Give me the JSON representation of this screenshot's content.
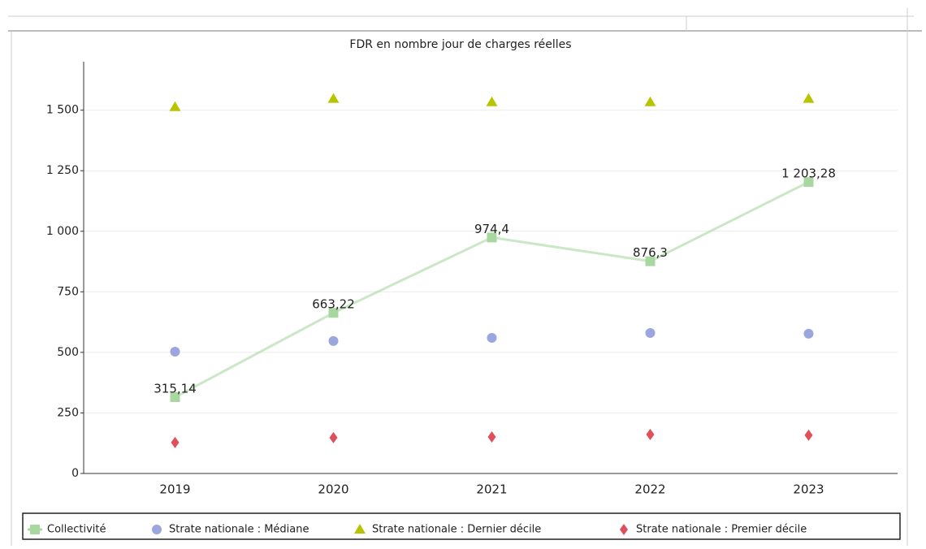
{
  "chart_data": {
    "type": "line",
    "title": "FDR en nombre jour de charges réelles",
    "categories": [
      "2019",
      "2020",
      "2021",
      "2022",
      "2023"
    ],
    "ylim": [
      0,
      1700
    ],
    "yticks": [
      0,
      250,
      500,
      750,
      {
        "value": 1000,
        "label": "1 000"
      },
      {
        "value": 1250,
        "label": "1 250"
      },
      {
        "value": 1500,
        "label": "1 500"
      }
    ],
    "grid": true,
    "legend": "bottom",
    "series": [
      {
        "name": "Collectivité",
        "color": "#a8d8a0",
        "marker": "square",
        "line": true,
        "values": [
          315.14,
          663.22,
          974.4,
          876.3,
          1203.28
        ],
        "value_labels": [
          "315,14",
          "663,22",
          "974,4",
          "876,3",
          "1 203,28"
        ]
      },
      {
        "name": "Strate nationale : Médiane",
        "color": "#9aa6dd",
        "marker": "circle",
        "line": false,
        "values": [
          503,
          547,
          560,
          580,
          577
        ]
      },
      {
        "name": "Strate nationale : Dernier décile",
        "color": "#b8c400",
        "marker": "triangle",
        "line": false,
        "values": [
          1513,
          1547,
          1533,
          1533,
          1547
        ]
      },
      {
        "name": "Strate nationale : Premier décile",
        "color": "#e0505a",
        "marker": "diamond",
        "line": false,
        "values": [
          128,
          148,
          151,
          161,
          158
        ]
      }
    ]
  }
}
